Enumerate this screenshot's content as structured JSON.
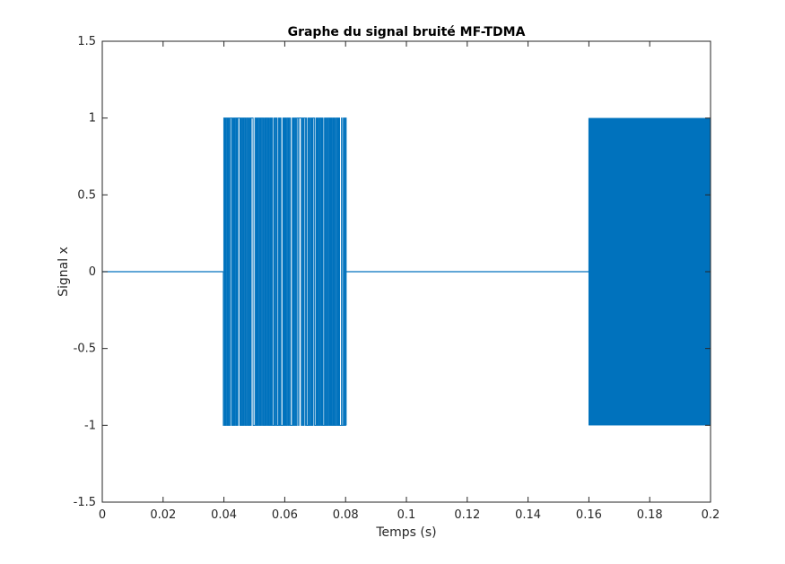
{
  "chart_data": {
    "type": "line",
    "title": "Graphe du signal bruité MF-TDMA",
    "xlabel": "Temps (s)",
    "ylabel": "Signal x",
    "xlim": [
      0,
      0.2
    ],
    "ylim": [
      -1.5,
      1.5
    ],
    "x_ticks": [
      0,
      0.02,
      0.04,
      0.06,
      0.08,
      0.1,
      0.12,
      0.14,
      0.16,
      0.18,
      0.2
    ],
    "x_tick_labels": [
      "0",
      "0.02",
      "0.04",
      "0.06",
      "0.08",
      "0.1",
      "0.12",
      "0.14",
      "0.16",
      "0.18",
      "0.2"
    ],
    "y_ticks": [
      -1.5,
      -1,
      -0.5,
      0,
      0.5,
      1,
      1.5
    ],
    "y_tick_labels": [
      "-1.5",
      "-1",
      "-0.5",
      "0",
      "0.5",
      "1",
      "1.5"
    ],
    "grid": false,
    "series_color": "#0072BD",
    "series": [
      {
        "segments": [
          {
            "kind": "constant",
            "x": [
              0,
              0.0398
            ],
            "value": 0
          },
          {
            "kind": "switching",
            "x": [
              0.0398,
              0.0802
            ],
            "levels": [
              -1,
              1
            ]
          },
          {
            "kind": "constant",
            "x": [
              0.0802,
              0.16
            ],
            "value": 0
          },
          {
            "kind": "oscillating",
            "x": [
              0.16,
              0.2
            ],
            "amplitude": 1
          }
        ]
      }
    ]
  }
}
